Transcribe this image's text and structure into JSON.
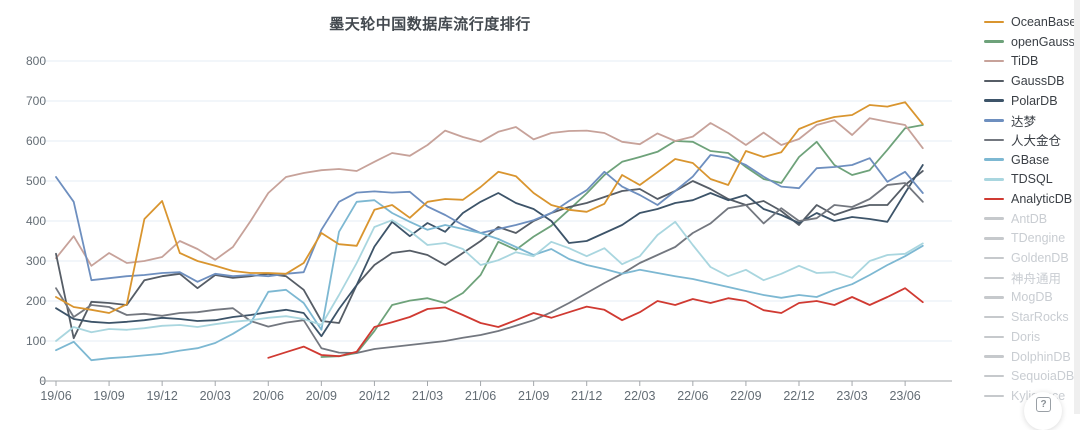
{
  "title": "墨天轮中国数据库流行度排行",
  "help_button_label": "?",
  "chart_data": {
    "type": "line",
    "grid": true,
    "legend_position": "right",
    "grid_color": "#e6edf4",
    "axis_color": "#a3a7ab",
    "axis_label_color": "#646d75",
    "ylim": [
      0,
      800
    ],
    "y_ticks": [
      0,
      100,
      200,
      300,
      400,
      500,
      600,
      700,
      800
    ],
    "x_tick_labels": [
      "19/06",
      "19/09",
      "19/12",
      "20/03",
      "20/06",
      "20/09",
      "20/12",
      "21/03",
      "21/06",
      "21/09",
      "21/12",
      "22/03",
      "22/06",
      "22/09",
      "22/12",
      "23/03",
      "23/06"
    ],
    "x": [
      "19/06",
      "19/07",
      "19/08",
      "19/09",
      "19/10",
      "19/11",
      "19/12",
      "20/01",
      "20/02",
      "20/03",
      "20/04",
      "20/05",
      "20/06",
      "20/07",
      "20/08",
      "20/09",
      "20/10",
      "20/11",
      "20/12",
      "21/01",
      "21/02",
      "21/03",
      "21/04",
      "21/05",
      "21/06",
      "21/07",
      "21/08",
      "21/09",
      "21/10",
      "21/11",
      "21/12",
      "22/01",
      "22/02",
      "22/03",
      "22/04",
      "22/05",
      "22/06",
      "22/07",
      "22/08",
      "22/09",
      "22/10",
      "22/11",
      "22/12",
      "23/01",
      "23/02",
      "23/03",
      "23/04",
      "23/05",
      "23/06",
      "23/07"
    ],
    "series": [
      {
        "name": "OceanBase",
        "color": "#d9952f",
        "values": [
          210,
          185,
          178,
          170,
          192,
          405,
          450,
          320,
          300,
          288,
          275,
          270,
          270,
          268,
          295,
          370,
          342,
          338,
          428,
          440,
          408,
          448,
          455,
          453,
          485,
          523,
          512,
          470,
          440,
          428,
          423,
          443,
          515,
          490,
          522,
          555,
          545,
          505,
          490,
          575,
          560,
          572,
          630,
          648,
          660,
          665,
          690,
          686,
          697,
          642
        ]
      },
      {
        "name": "openGauss",
        "color": "#6ea27a",
        "values": [
          null,
          null,
          null,
          null,
          null,
          null,
          null,
          null,
          null,
          null,
          null,
          null,
          null,
          null,
          null,
          60,
          62,
          70,
          125,
          190,
          201,
          207,
          195,
          220,
          265,
          348,
          328,
          361,
          388,
          428,
          469,
          515,
          548,
          560,
          573,
          600,
          598,
          575,
          570,
          535,
          505,
          495,
          560,
          598,
          540,
          515,
          527,
          578,
          632,
          640
        ]
      },
      {
        "name": "TiDB",
        "color": "#c7a29a",
        "values": [
          307,
          362,
          288,
          320,
          295,
          300,
          310,
          350,
          330,
          303,
          335,
          400,
          470,
          510,
          520,
          527,
          530,
          525,
          548,
          570,
          563,
          590,
          626,
          610,
          598,
          623,
          635,
          604,
          620,
          625,
          626,
          620,
          598,
          592,
          619,
          600,
          611,
          645,
          620,
          590,
          621,
          590,
          605,
          640,
          652,
          615,
          657,
          648,
          640,
          582
        ]
      },
      {
        "name": "GaussDB",
        "color": "#565d66",
        "values": [
          318,
          107,
          198,
          195,
          190,
          252,
          262,
          268,
          232,
          265,
          258,
          262,
          268,
          262,
          228,
          150,
          145,
          240,
          290,
          320,
          326,
          315,
          290,
          320,
          350,
          385,
          370,
          400,
          420,
          435,
          445,
          460,
          475,
          480,
          455,
          475,
          500,
          480,
          455,
          440,
          450,
          425,
          390,
          440,
          415,
          430,
          440,
          440,
          490,
          525
        ]
      },
      {
        "name": "PolarDB",
        "color": "#3d5469",
        "values": [
          182,
          155,
          148,
          145,
          148,
          152,
          158,
          155,
          150,
          152,
          160,
          165,
          172,
          178,
          170,
          112,
          180,
          240,
          336,
          398,
          362,
          395,
          373,
          420,
          448,
          470,
          445,
          430,
          400,
          345,
          350,
          370,
          390,
          420,
          430,
          445,
          452,
          470,
          452,
          465,
          430,
          415,
          395,
          420,
          400,
          410,
          405,
          398,
          470,
          540
        ]
      },
      {
        "name": "达梦",
        "color": "#6e8fbf",
        "values": [
          510,
          448,
          252,
          257,
          262,
          265,
          270,
          272,
          248,
          268,
          262,
          265,
          262,
          268,
          272,
          378,
          448,
          471,
          474,
          471,
          473,
          436,
          415,
          390,
          370,
          380,
          390,
          402,
          420,
          450,
          477,
          523,
          486,
          465,
          440,
          475,
          511,
          565,
          558,
          540,
          511,
          486,
          482,
          532,
          535,
          540,
          557,
          498,
          523,
          470
        ]
      },
      {
        "name": "人大金仓",
        "color": "#73777f",
        "values": [
          232,
          160,
          190,
          185,
          165,
          168,
          163,
          170,
          172,
          178,
          182,
          150,
          136,
          146,
          152,
          82,
          71,
          70,
          80,
          85,
          90,
          95,
          100,
          108,
          115,
          125,
          138,
          152,
          172,
          195,
          220,
          245,
          268,
          295,
          315,
          335,
          370,
          394,
          432,
          440,
          394,
          432,
          400,
          407,
          440,
          435,
          455,
          490,
          495,
          448
        ]
      },
      {
        "name": "GBase",
        "color": "#7db8d2",
        "values": [
          77,
          98,
          52,
          57,
          60,
          64,
          68,
          76,
          82,
          95,
          118,
          145,
          223,
          228,
          195,
          128,
          373,
          448,
          452,
          420,
          398,
          378,
          390,
          380,
          370,
          355,
          335,
          315,
          330,
          305,
          290,
          280,
          268,
          278,
          270,
          262,
          255,
          245,
          235,
          225,
          215,
          208,
          215,
          210,
          228,
          242,
          265,
          290,
          312,
          338
        ]
      },
      {
        "name": "TDSQL",
        "color": "#a9d6df",
        "values": [
          100,
          135,
          122,
          130,
          128,
          132,
          138,
          140,
          135,
          142,
          148,
          152,
          158,
          162,
          155,
          140,
          215,
          295,
          385,
          402,
          375,
          340,
          345,
          330,
          290,
          302,
          322,
          312,
          348,
          332,
          312,
          332,
          292,
          312,
          365,
          398,
          340,
          285,
          262,
          278,
          252,
          268,
          288,
          270,
          272,
          258,
          300,
          315,
          318,
          344
        ]
      },
      {
        "name": "AnalyticDB",
        "color": "#d03a32",
        "values": [
          null,
          null,
          null,
          null,
          null,
          null,
          null,
          null,
          null,
          null,
          null,
          null,
          58,
          72,
          86,
          65,
          62,
          73,
          135,
          147,
          160,
          180,
          184,
          165,
          145,
          135,
          152,
          170,
          158,
          172,
          186,
          178,
          152,
          172,
          200,
          190,
          205,
          195,
          207,
          200,
          177,
          170,
          195,
          200,
          190,
          210,
          190,
          210,
          232,
          197
        ]
      }
    ],
    "disabled_series": [
      "AntDB",
      "TDengine",
      "GoldenDB",
      "神舟通用",
      "MogDB",
      "StarRocks",
      "Doris",
      "DolphinDB",
      "SequoiaDB",
      "Kyligence"
    ]
  },
  "legend": {
    "disabled_swatch_color": "#c6c9cc",
    "items": [
      {
        "label": "OceanBase",
        "active": true
      },
      {
        "label": "openGauss",
        "active": true
      },
      {
        "label": "TiDB",
        "active": true
      },
      {
        "label": "GaussDB",
        "active": true
      },
      {
        "label": "PolarDB",
        "active": true
      },
      {
        "label": "达梦",
        "active": true
      },
      {
        "label": "人大金仓",
        "active": true
      },
      {
        "label": "GBase",
        "active": true
      },
      {
        "label": "TDSQL",
        "active": true
      },
      {
        "label": "AnalyticDB",
        "active": true
      },
      {
        "label": "AntDB",
        "active": false
      },
      {
        "label": "TDengine",
        "active": false
      },
      {
        "label": "GoldenDB",
        "active": false
      },
      {
        "label": "神舟通用",
        "active": false
      },
      {
        "label": "MogDB",
        "active": false
      },
      {
        "label": "StarRocks",
        "active": false
      },
      {
        "label": "Doris",
        "active": false
      },
      {
        "label": "DolphinDB",
        "active": false
      },
      {
        "label": "SequoiaDB",
        "active": false
      },
      {
        "label": "Kyligence",
        "active": false
      }
    ]
  }
}
